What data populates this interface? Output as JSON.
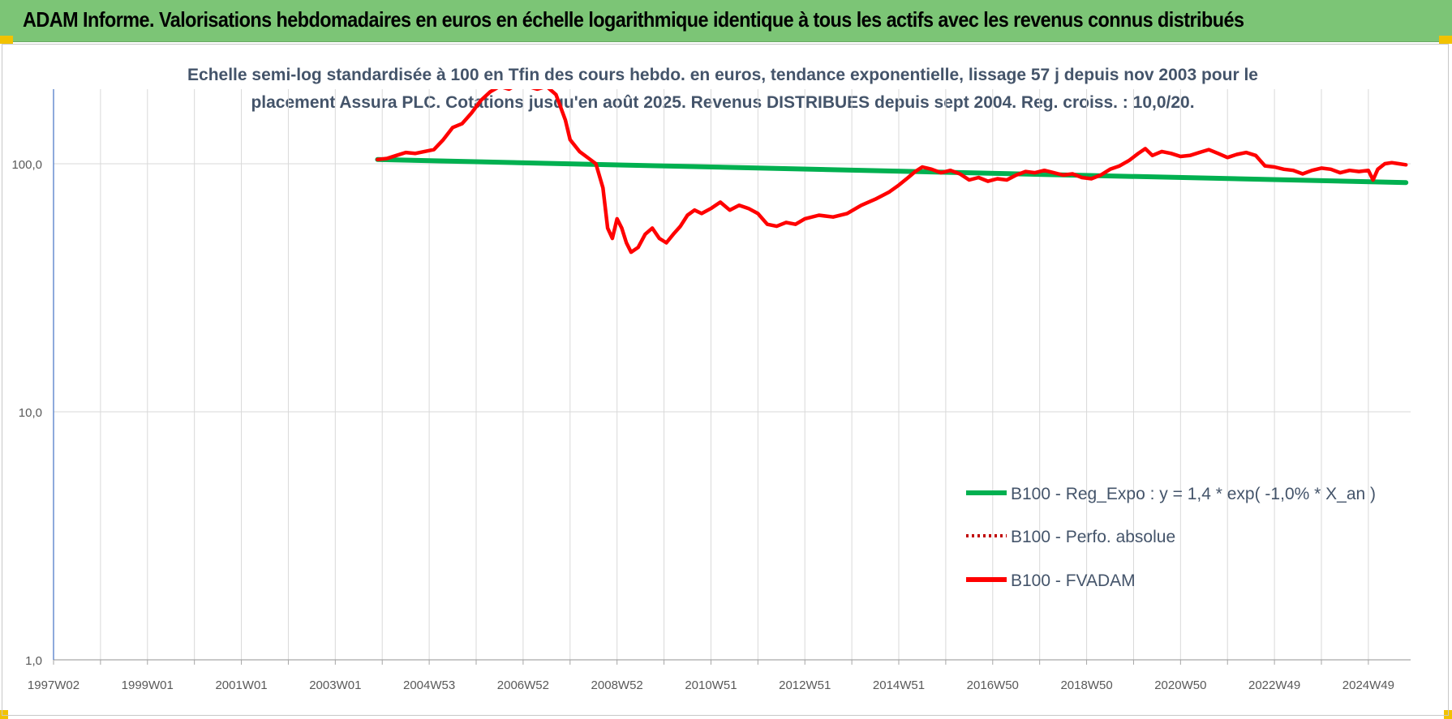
{
  "header": {
    "title": "ADAM Informe. Valorisations hebdomadaires en euros en échelle logarithmique identique à tous les actifs avec les revenus connus distribués"
  },
  "colors": {
    "banner": "#7cc576",
    "regression": "#00b050",
    "fvadam": "#ff0000",
    "perfo": "#c00000",
    "grid": "#d9d9d9",
    "axis": "#4472c4"
  },
  "chart_data": {
    "type": "line",
    "subtitle_lines": [
      "Echelle semi-log standardisée à 100 en Tfin des cours hebdo. en euros, tendance exponentielle, lissage 57 j depuis nov 2003 pour le",
      "placement Assura PLC. Cotations jusqu'en août 2025. Revenus DISTRIBUES depuis sept 2004. Reg. croiss. : 10,0/20."
    ],
    "y_scale": "log",
    "ylim": [
      1,
      200
    ],
    "y_ticks": [
      1,
      10,
      100
    ],
    "y_tick_labels": [
      "1,0",
      "10,0",
      "100,0"
    ],
    "x_range": [
      1997.0,
      2025.9
    ],
    "x_ticks": [
      1997.0,
      1999.0,
      2001.0,
      2003.0,
      2005.0,
      2007.0,
      2009.0,
      2011.0,
      2013.0,
      2015.0,
      2017.0,
      2019.0,
      2021.0,
      2023.0,
      2025.0
    ],
    "x_tick_labels": [
      "1997W02",
      "1999W01",
      "2001W01",
      "2003W01",
      "2004W53",
      "2006W52",
      "2008W52",
      "2010W51",
      "2012W51",
      "2014W51",
      "2016W50",
      "2018W50",
      "2020W50",
      "2022W49",
      "2024W49"
    ],
    "grid": true,
    "legend_position": "bottom-right",
    "series": [
      {
        "name": "B100 - Reg_Expo : y = 1,4 * exp( -1,0% *  X_an )",
        "style": "solid",
        "points": [
          [
            2003.9,
            104
          ],
          [
            2025.8,
            84
          ]
        ]
      },
      {
        "name": "B100 - Perfo. absolue",
        "style": "dotted",
        "points": []
      },
      {
        "name": "B100 - FVADAM",
        "style": "solid",
        "points": [
          [
            2003.9,
            104
          ],
          [
            2004.1,
            105
          ],
          [
            2004.3,
            108
          ],
          [
            2004.5,
            111
          ],
          [
            2004.7,
            110
          ],
          [
            2004.9,
            112
          ],
          [
            2005.1,
            114
          ],
          [
            2005.3,
            125
          ],
          [
            2005.5,
            140
          ],
          [
            2005.7,
            145
          ],
          [
            2005.9,
            160
          ],
          [
            2006.1,
            180
          ],
          [
            2006.3,
            195
          ],
          [
            2006.5,
            205
          ],
          [
            2006.7,
            200
          ],
          [
            2006.9,
            210
          ],
          [
            2007.1,
            205
          ],
          [
            2007.3,
            200
          ],
          [
            2007.5,
            205
          ],
          [
            2007.7,
            190
          ],
          [
            2007.9,
            150
          ],
          [
            2008.0,
            125
          ],
          [
            2008.2,
            112
          ],
          [
            2008.4,
            105
          ],
          [
            2008.55,
            100
          ],
          [
            2008.7,
            80
          ],
          [
            2008.8,
            55
          ],
          [
            2008.9,
            50
          ],
          [
            2009.0,
            60
          ],
          [
            2009.1,
            55
          ],
          [
            2009.2,
            48
          ],
          [
            2009.3,
            44
          ],
          [
            2009.45,
            46
          ],
          [
            2009.6,
            52
          ],
          [
            2009.75,
            55
          ],
          [
            2009.9,
            50
          ],
          [
            2010.05,
            48
          ],
          [
            2010.2,
            52
          ],
          [
            2010.35,
            56
          ],
          [
            2010.5,
            62
          ],
          [
            2010.65,
            65
          ],
          [
            2010.8,
            63
          ],
          [
            2011.0,
            66
          ],
          [
            2011.2,
            70
          ],
          [
            2011.4,
            65
          ],
          [
            2011.6,
            68
          ],
          [
            2011.8,
            66
          ],
          [
            2012.0,
            63
          ],
          [
            2012.2,
            57
          ],
          [
            2012.4,
            56
          ],
          [
            2012.6,
            58
          ],
          [
            2012.8,
            57
          ],
          [
            2013.0,
            60
          ],
          [
            2013.3,
            62
          ],
          [
            2013.6,
            61
          ],
          [
            2013.9,
            63
          ],
          [
            2014.2,
            68
          ],
          [
            2014.5,
            72
          ],
          [
            2014.8,
            77
          ],
          [
            2015.0,
            82
          ],
          [
            2015.2,
            88
          ],
          [
            2015.35,
            93
          ],
          [
            2015.5,
            97
          ],
          [
            2015.7,
            95
          ],
          [
            2015.9,
            92
          ],
          [
            2016.1,
            94
          ],
          [
            2016.3,
            91
          ],
          [
            2016.5,
            86
          ],
          [
            2016.7,
            88
          ],
          [
            2016.9,
            85
          ],
          [
            2017.1,
            87
          ],
          [
            2017.3,
            86
          ],
          [
            2017.5,
            90
          ],
          [
            2017.7,
            93
          ],
          [
            2017.9,
            92
          ],
          [
            2018.1,
            94
          ],
          [
            2018.3,
            92
          ],
          [
            2018.5,
            90
          ],
          [
            2018.7,
            91
          ],
          [
            2018.9,
            88
          ],
          [
            2019.1,
            87
          ],
          [
            2019.3,
            90
          ],
          [
            2019.5,
            95
          ],
          [
            2019.7,
            98
          ],
          [
            2019.9,
            103
          ],
          [
            2020.1,
            110
          ],
          [
            2020.25,
            115
          ],
          [
            2020.4,
            108
          ],
          [
            2020.6,
            112
          ],
          [
            2020.8,
            110
          ],
          [
            2021.0,
            107
          ],
          [
            2021.2,
            108
          ],
          [
            2021.4,
            111
          ],
          [
            2021.6,
            114
          ],
          [
            2021.8,
            110
          ],
          [
            2022.0,
            106
          ],
          [
            2022.2,
            109
          ],
          [
            2022.4,
            111
          ],
          [
            2022.6,
            108
          ],
          [
            2022.8,
            98
          ],
          [
            2023.0,
            97
          ],
          [
            2023.2,
            95
          ],
          [
            2023.4,
            94
          ],
          [
            2023.6,
            91
          ],
          [
            2023.8,
            94
          ],
          [
            2024.0,
            96
          ],
          [
            2024.2,
            95
          ],
          [
            2024.4,
            92
          ],
          [
            2024.6,
            94
          ],
          [
            2024.8,
            93
          ],
          [
            2025.0,
            94
          ],
          [
            2025.1,
            86
          ],
          [
            2025.2,
            95
          ],
          [
            2025.35,
            100
          ],
          [
            2025.5,
            101
          ],
          [
            2025.65,
            100
          ],
          [
            2025.8,
            99
          ]
        ]
      }
    ]
  }
}
